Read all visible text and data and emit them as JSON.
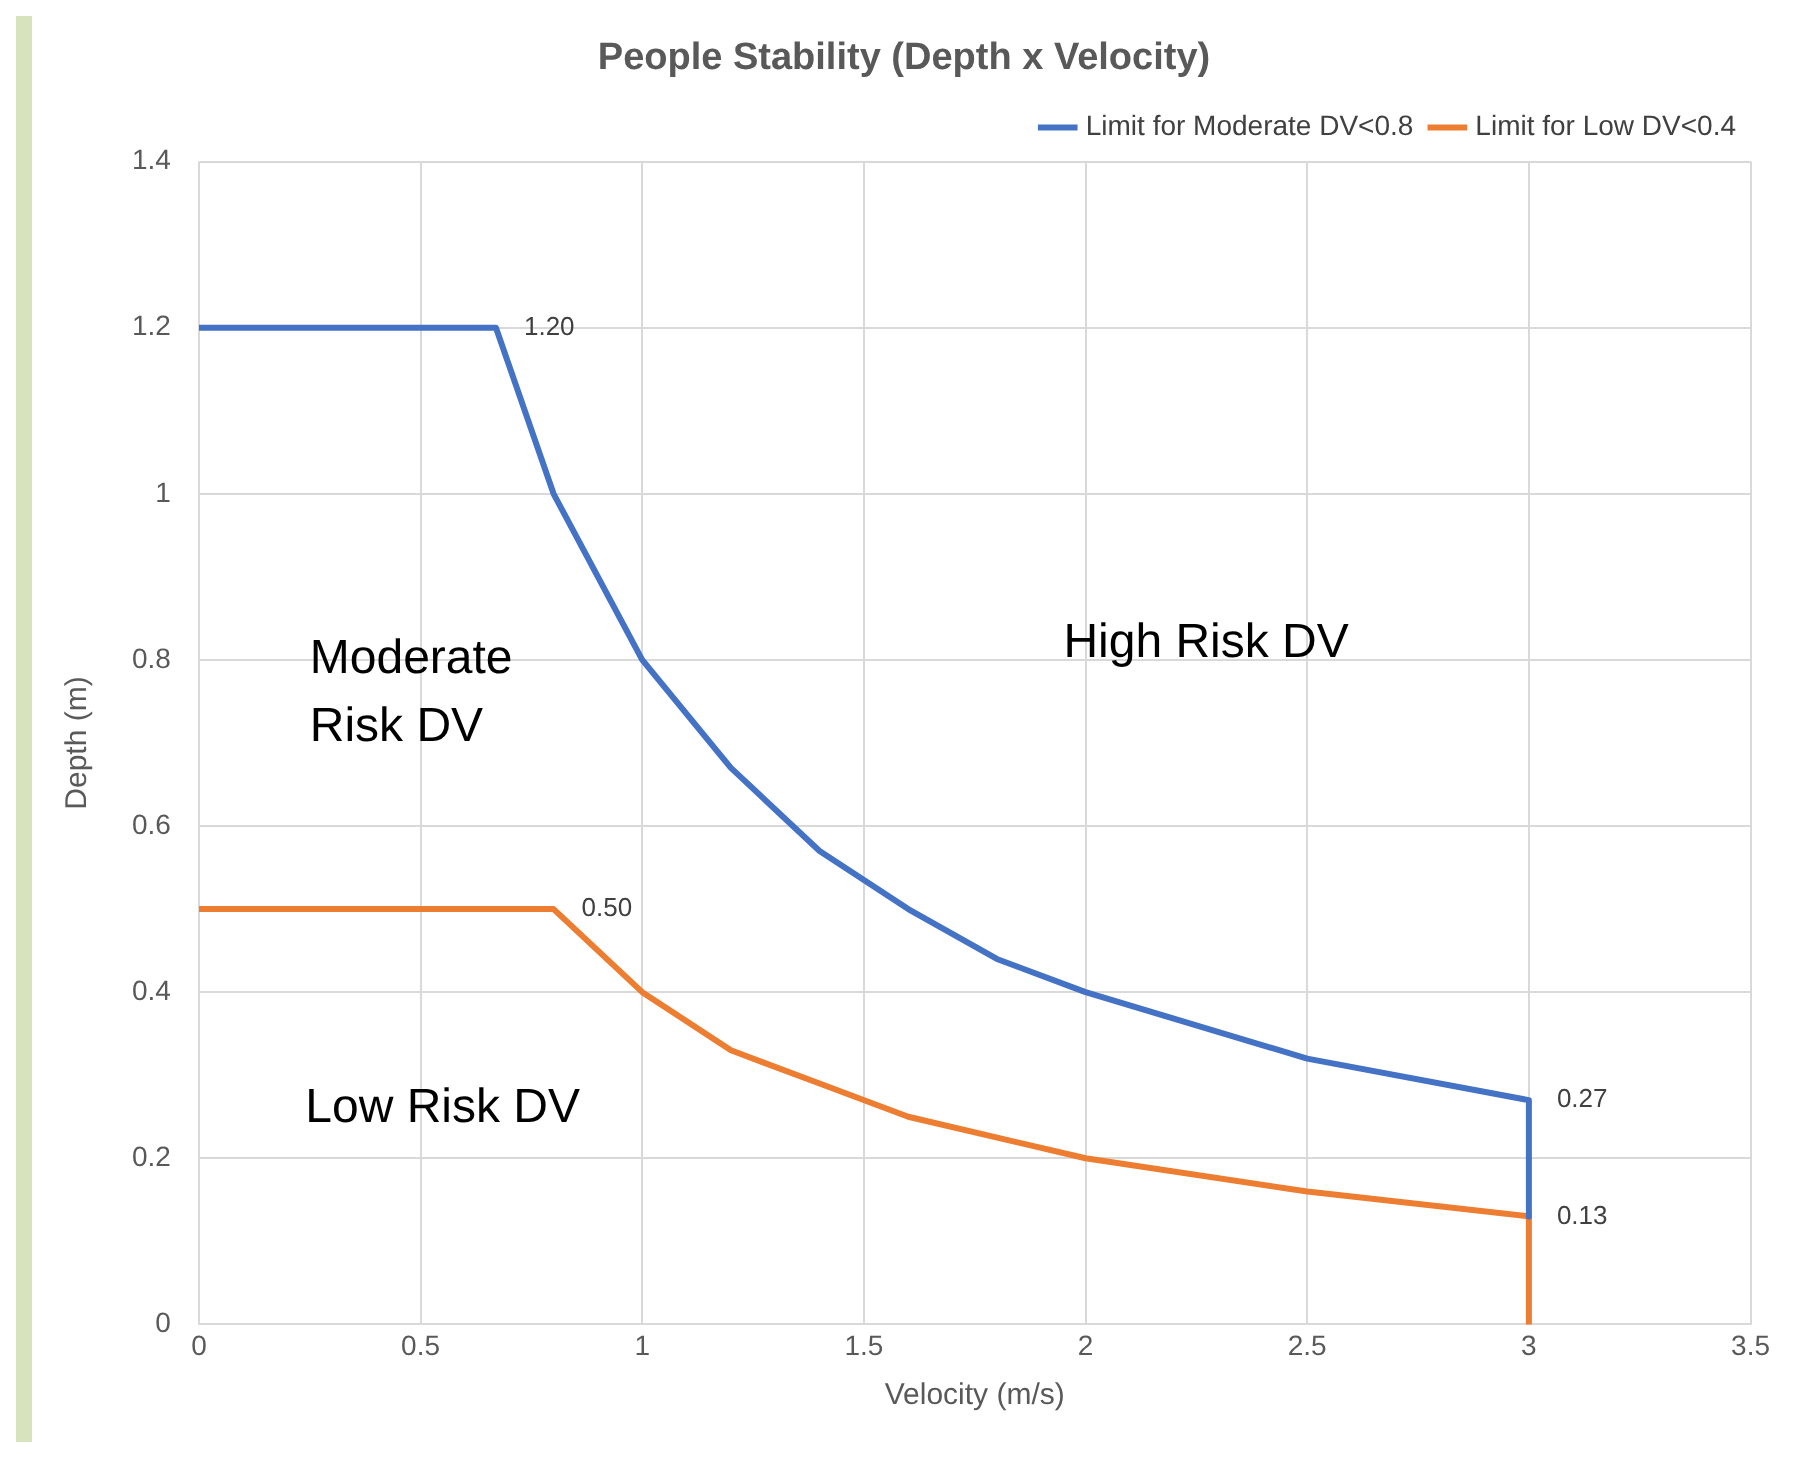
{
  "chart_data": {
    "type": "line",
    "title": "People Stability (Depth x Velocity)",
    "xlabel": "Velocity (m/s)",
    "ylabel": "Depth (m)",
    "xlim": [
      0,
      3.5
    ],
    "xticks": [
      0,
      0.5,
      1,
      1.5,
      2,
      2.5,
      3,
      3.5
    ],
    "ylim": [
      0,
      1.4
    ],
    "yticks": [
      0,
      {
        "value": 0.2,
        "label": "0.2"
      },
      {
        "value": 0.4,
        "label": "0.4"
      },
      {
        "value": 0.6,
        "label": "0.6"
      },
      {
        "value": 0.8,
        "label": "0.8"
      },
      1,
      {
        "value": 1.2,
        "label": "1.2"
      },
      {
        "value": 1.4,
        "label": "1.4"
      }
    ],
    "grid": true,
    "legend": "top right",
    "marker": "none",
    "line_style": "solid",
    "series": [
      {
        "name": "Limit for Moderate DV<0.8",
        "color": "#4472c4",
        "x": [
          0,
          0.67,
          0.8,
          1,
          1.2,
          1.4,
          1.6,
          1.8,
          2,
          2.5,
          3,
          3
        ],
        "values": [
          1.2,
          1.2,
          1.0,
          0.8,
          0.67,
          0.57,
          0.5,
          0.44,
          0.4,
          0.32,
          0.27,
          0.13
        ]
      },
      {
        "name": "Limit for Low DV<0.4",
        "color": "#ed7d31",
        "x": [
          0,
          0.8,
          1,
          1.2,
          1.4,
          1.6,
          2,
          2.5,
          3,
          3
        ],
        "values": [
          0.5,
          0.5,
          0.4,
          0.33,
          0.29,
          0.25,
          0.2,
          0.16,
          0.13,
          0
        ]
      }
    ],
    "annotations": [
      {
        "text": "1.20",
        "x": 0.67,
        "y": 1.2
      },
      {
        "text": "0.50",
        "x": 0.8,
        "y": 0.5
      },
      {
        "text": "0.27",
        "x": 3,
        "y": 0.27
      },
      {
        "text": "0.13",
        "x": 3,
        "y": 0.13
      },
      "High Risk DV",
      "Moderate Risk DV",
      "Low Risk DV"
    ]
  }
}
